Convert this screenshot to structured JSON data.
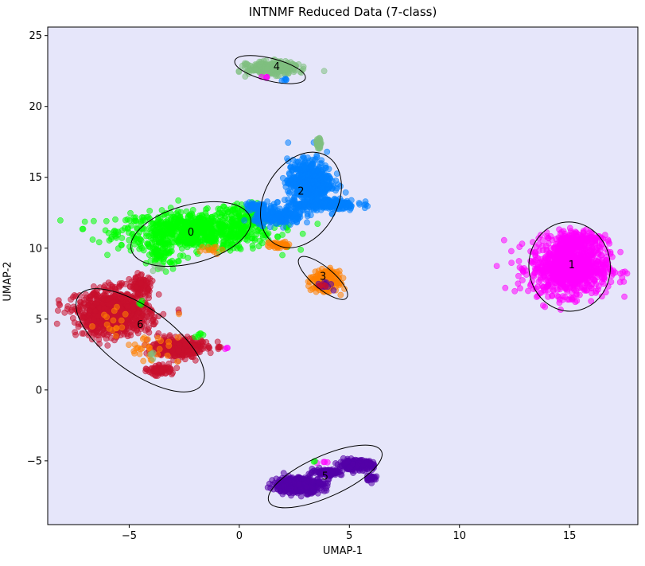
{
  "chart_data": {
    "type": "scatter",
    "title": "INTNMF Reduced Data (7-class)",
    "xlabel": "UMAP-1",
    "ylabel": "UMAP-2",
    "xlim": [
      -8.7,
      18.1
    ],
    "ylim": [
      -9.5,
      25.6
    ],
    "xticks": [
      -5,
      0,
      5,
      10,
      15
    ],
    "yticks": [
      -5,
      0,
      5,
      10,
      15,
      20,
      25
    ],
    "xtick_labels": [
      "−5",
      "0",
      "5",
      "10",
      "15"
    ],
    "ytick_labels": [
      "−5",
      "0",
      "5",
      "10",
      "15",
      "20",
      "25"
    ],
    "plot_background": "#e6e6fa",
    "grid": false,
    "point_alpha": 0.55,
    "series": [
      {
        "label": "0",
        "color": "#00ff00",
        "cx": -2.2,
        "cy": 11.1,
        "ellipse": {
          "cx": -2.2,
          "cy": 11.0,
          "width": 5.6,
          "height": 4.1,
          "angle_deg": 15
        },
        "blobs": [
          [
            -2.0,
            11.2,
            3.2,
            1.2,
            800
          ],
          [
            0.2,
            12.3,
            0.8,
            0.8,
            80
          ],
          [
            -3.5,
            9.5,
            0.6,
            0.8,
            60
          ]
        ]
      },
      {
        "label": "1",
        "color": "#ff00ff",
        "cx": 15.1,
        "cy": 8.8,
        "ellipse": {
          "cx": 15.0,
          "cy": 8.7,
          "width": 3.7,
          "height": 6.3,
          "angle_deg": 5
        },
        "blobs": [
          [
            15.0,
            8.6,
            1.6,
            1.7,
            900
          ],
          [
            15.3,
            10.6,
            1.0,
            0.6,
            150
          ]
        ]
      },
      {
        "label": "2",
        "color": "#0080ff",
        "cx": 2.8,
        "cy": 14.0,
        "ellipse": {
          "cx": 2.8,
          "cy": 13.4,
          "width": 3.3,
          "height": 7.2,
          "angle_deg": -30
        },
        "blobs": [
          [
            3.2,
            14.7,
            0.9,
            1.4,
            500
          ],
          [
            3.7,
            13.1,
            1.5,
            0.4,
            200
          ],
          [
            1.8,
            12.2,
            1.0,
            0.5,
            200
          ],
          [
            0.8,
            12.9,
            0.5,
            0.3,
            60
          ]
        ]
      },
      {
        "label": "3",
        "color": "#ff8000",
        "cx": 3.8,
        "cy": 8.0,
        "ellipse": {
          "cx": 3.8,
          "cy": 7.9,
          "width": 2.8,
          "height": 1.5,
          "angle_deg": -40
        },
        "blobs": [
          [
            3.9,
            7.7,
            0.5,
            0.6,
            300
          ],
          [
            1.8,
            10.2,
            0.5,
            0.2,
            40
          ]
        ]
      },
      {
        "label": "4",
        "color": "#7fbf7f",
        "cx": 1.7,
        "cy": 22.8,
        "ellipse": {
          "cx": 1.4,
          "cy": 22.6,
          "width": 3.3,
          "height": 1.6,
          "angle_deg": -14
        },
        "blobs": [
          [
            1.5,
            22.7,
            1.0,
            0.4,
            300
          ],
          [
            3.6,
            17.4,
            0.1,
            0.3,
            40
          ]
        ]
      },
      {
        "label": "5",
        "color": "#5300a8",
        "cx": 3.9,
        "cy": -6.1,
        "ellipse": {
          "cx": 3.9,
          "cy": -6.1,
          "width": 5.6,
          "height": 2.9,
          "angle_deg": 24
        },
        "blobs": [
          [
            2.7,
            -6.7,
            1.0,
            0.5,
            450
          ],
          [
            5.3,
            -5.3,
            0.7,
            0.3,
            220
          ],
          [
            4.0,
            -5.8,
            0.6,
            0.2,
            120
          ],
          [
            6.0,
            -6.2,
            0.2,
            0.2,
            30
          ]
        ]
      },
      {
        "label": "6",
        "color": "#c8102e",
        "cx": -4.5,
        "cy": 4.6,
        "ellipse": {
          "cx": -4.5,
          "cy": 3.5,
          "width": 6.9,
          "height": 4.5,
          "angle_deg": -36
        },
        "blobs": [
          [
            -5.7,
            5.4,
            1.5,
            1.4,
            900
          ],
          [
            -2.8,
            3.0,
            1.0,
            0.6,
            350
          ],
          [
            -3.6,
            1.4,
            0.5,
            0.3,
            80
          ],
          [
            -4.5,
            7.4,
            0.5,
            0.6,
            80
          ]
        ]
      }
    ],
    "extra_points": [
      {
        "color": "#ff00ff",
        "blobs": [
          [
            1.2,
            22.1,
            0.2,
            0.1,
            4
          ],
          [
            3.8,
            -5.1,
            0.3,
            0.1,
            4
          ],
          [
            -0.6,
            2.9,
            0.1,
            0.1,
            3
          ]
        ]
      },
      {
        "color": "#0080ff",
        "blobs": [
          [
            2.1,
            21.9,
            0.2,
            0.1,
            5
          ]
        ]
      },
      {
        "color": "#00ff00",
        "blobs": [
          [
            -1.9,
            3.8,
            0.2,
            0.3,
            6
          ],
          [
            -4.5,
            6.1,
            0.1,
            0.2,
            4
          ],
          [
            3.4,
            -5.1,
            0.1,
            0.1,
            2
          ]
        ]
      },
      {
        "color": "#ff8000",
        "blobs": [
          [
            -4.0,
            3.0,
            1.2,
            1.0,
            30
          ],
          [
            -5.5,
            4.8,
            0.8,
            0.8,
            15
          ],
          [
            -1.5,
            10.0,
            0.6,
            0.3,
            12
          ]
        ]
      },
      {
        "color": "#5300a8",
        "blobs": [
          [
            3.9,
            7.4,
            0.3,
            0.3,
            10
          ]
        ]
      },
      {
        "color": "#7fbf7f",
        "blobs": [
          [
            -3.7,
            8.7,
            0.3,
            0.2,
            8
          ],
          [
            -3.9,
            2.5,
            0.2,
            0.2,
            4
          ]
        ]
      },
      {
        "color": "#c8102e",
        "blobs": [
          [
            3.8,
            7.3,
            0.3,
            0.2,
            6
          ],
          [
            -0.9,
            3.0,
            0.2,
            0.1,
            5
          ]
        ]
      }
    ]
  }
}
